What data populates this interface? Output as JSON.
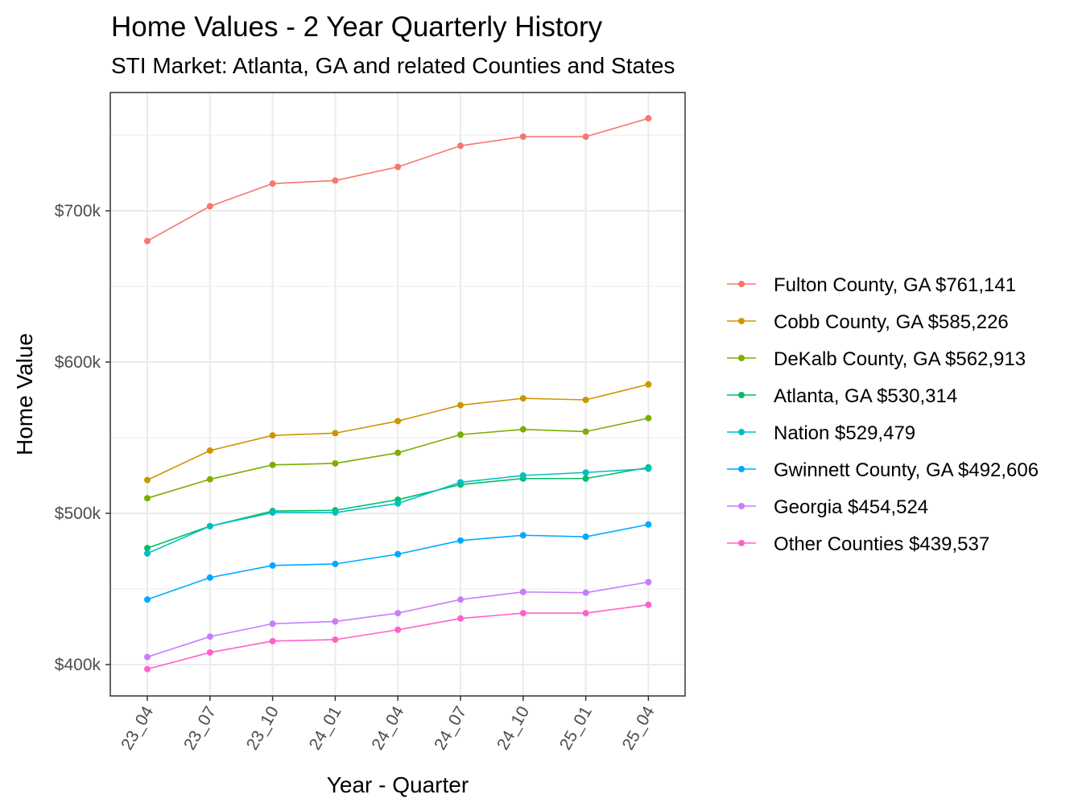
{
  "chart_data": {
    "type": "line",
    "title": "Home Values - 2 Year Quarterly History",
    "subtitle": "STI Market: Atlanta, GA and related Counties and States",
    "xlabel": "Year - Quarter",
    "ylabel": "Home Value",
    "categories": [
      "23_04",
      "23_07",
      "23_10",
      "24_01",
      "24_04",
      "24_07",
      "24_10",
      "25_01",
      "25_04"
    ],
    "ylim": [
      380000,
      780000
    ],
    "yticks": [
      400000,
      500000,
      600000,
      700000
    ],
    "ytick_labels": [
      "$400k",
      "$500k",
      "$600k",
      "$700k"
    ],
    "y_minor_grid": [
      450000,
      550000,
      650000,
      750000
    ],
    "grid": true,
    "legend_position": "right",
    "series": [
      {
        "name": "Fulton County, GA $761,141",
        "color": "#F8766D",
        "values": [
          680000,
          703000,
          718000,
          720000,
          729000,
          743000,
          749000,
          749000,
          761141
        ]
      },
      {
        "name": "Cobb County, GA $585,226",
        "color": "#CD9600",
        "values": [
          522000,
          541500,
          551500,
          553000,
          561000,
          571500,
          576000,
          575000,
          585226
        ]
      },
      {
        "name": "DeKalb County, GA $562,913",
        "color": "#7CAE00",
        "values": [
          510000,
          522500,
          532000,
          533000,
          540000,
          552000,
          555500,
          554000,
          562913
        ]
      },
      {
        "name": "Atlanta, GA $530,314",
        "color": "#00BE67",
        "values": [
          477000,
          491500,
          501500,
          502000,
          509000,
          519000,
          523000,
          523000,
          530314
        ]
      },
      {
        "name": "Nation $529,479",
        "color": "#00BFC4",
        "values": [
          473500,
          491500,
          500500,
          500500,
          506500,
          520500,
          525000,
          527000,
          529479
        ]
      },
      {
        "name": "Gwinnett County, GA $492,606",
        "color": "#00A9FF",
        "values": [
          443000,
          457500,
          465500,
          466500,
          473000,
          482000,
          485500,
          484500,
          492606
        ]
      },
      {
        "name": "Georgia $454,524",
        "color": "#C77CFF",
        "values": [
          405000,
          418500,
          427000,
          428500,
          434000,
          443000,
          448000,
          447500,
          454524
        ]
      },
      {
        "name": "Other Counties $439,537",
        "color": "#FF61CC",
        "values": [
          397000,
          408000,
          415500,
          416500,
          423000,
          430500,
          434000,
          434000,
          439537
        ]
      }
    ]
  }
}
